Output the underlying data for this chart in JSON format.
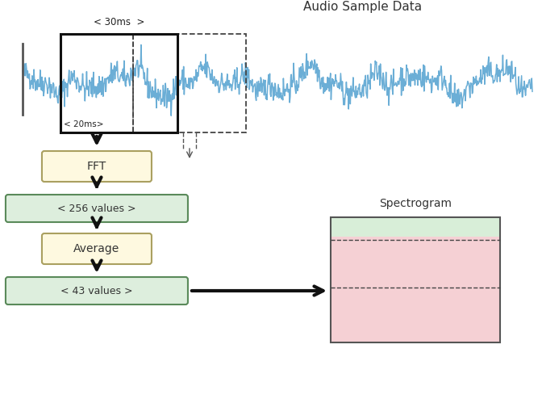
{
  "title": "Audio Sample Data",
  "spectrogram_title": "Spectrogram",
  "fft_label": "FFT",
  "values_256_label": "< 256 values >",
  "average_label": "Average",
  "values_43_label": "< 43 values >",
  "label_30ms": "< 30ms  >",
  "label_20ms": "< 20ms>",
  "wave_color": "#6baed6",
  "box_solid_color": "#111111",
  "box_dashed_color": "#444444",
  "fft_box_fill": "#fef9e0",
  "fft_box_edge": "#aaa060",
  "values_box_fill": "#ddeedd",
  "values_box_edge": "#5a8a5a",
  "average_box_fill": "#fef9e0",
  "average_box_edge": "#aaa060",
  "spectrogram_green_fill": "#d8eed8",
  "spectrogram_pink_fill": "#f5d0d4",
  "spectrogram_edge": "#555555",
  "arrow_color": "#111111",
  "dashed_arrow_color": "#555555",
  "background_color": "#ffffff",
  "seed": 42,
  "fig_w": 6.72,
  "fig_h": 4.94,
  "dpi": 100
}
